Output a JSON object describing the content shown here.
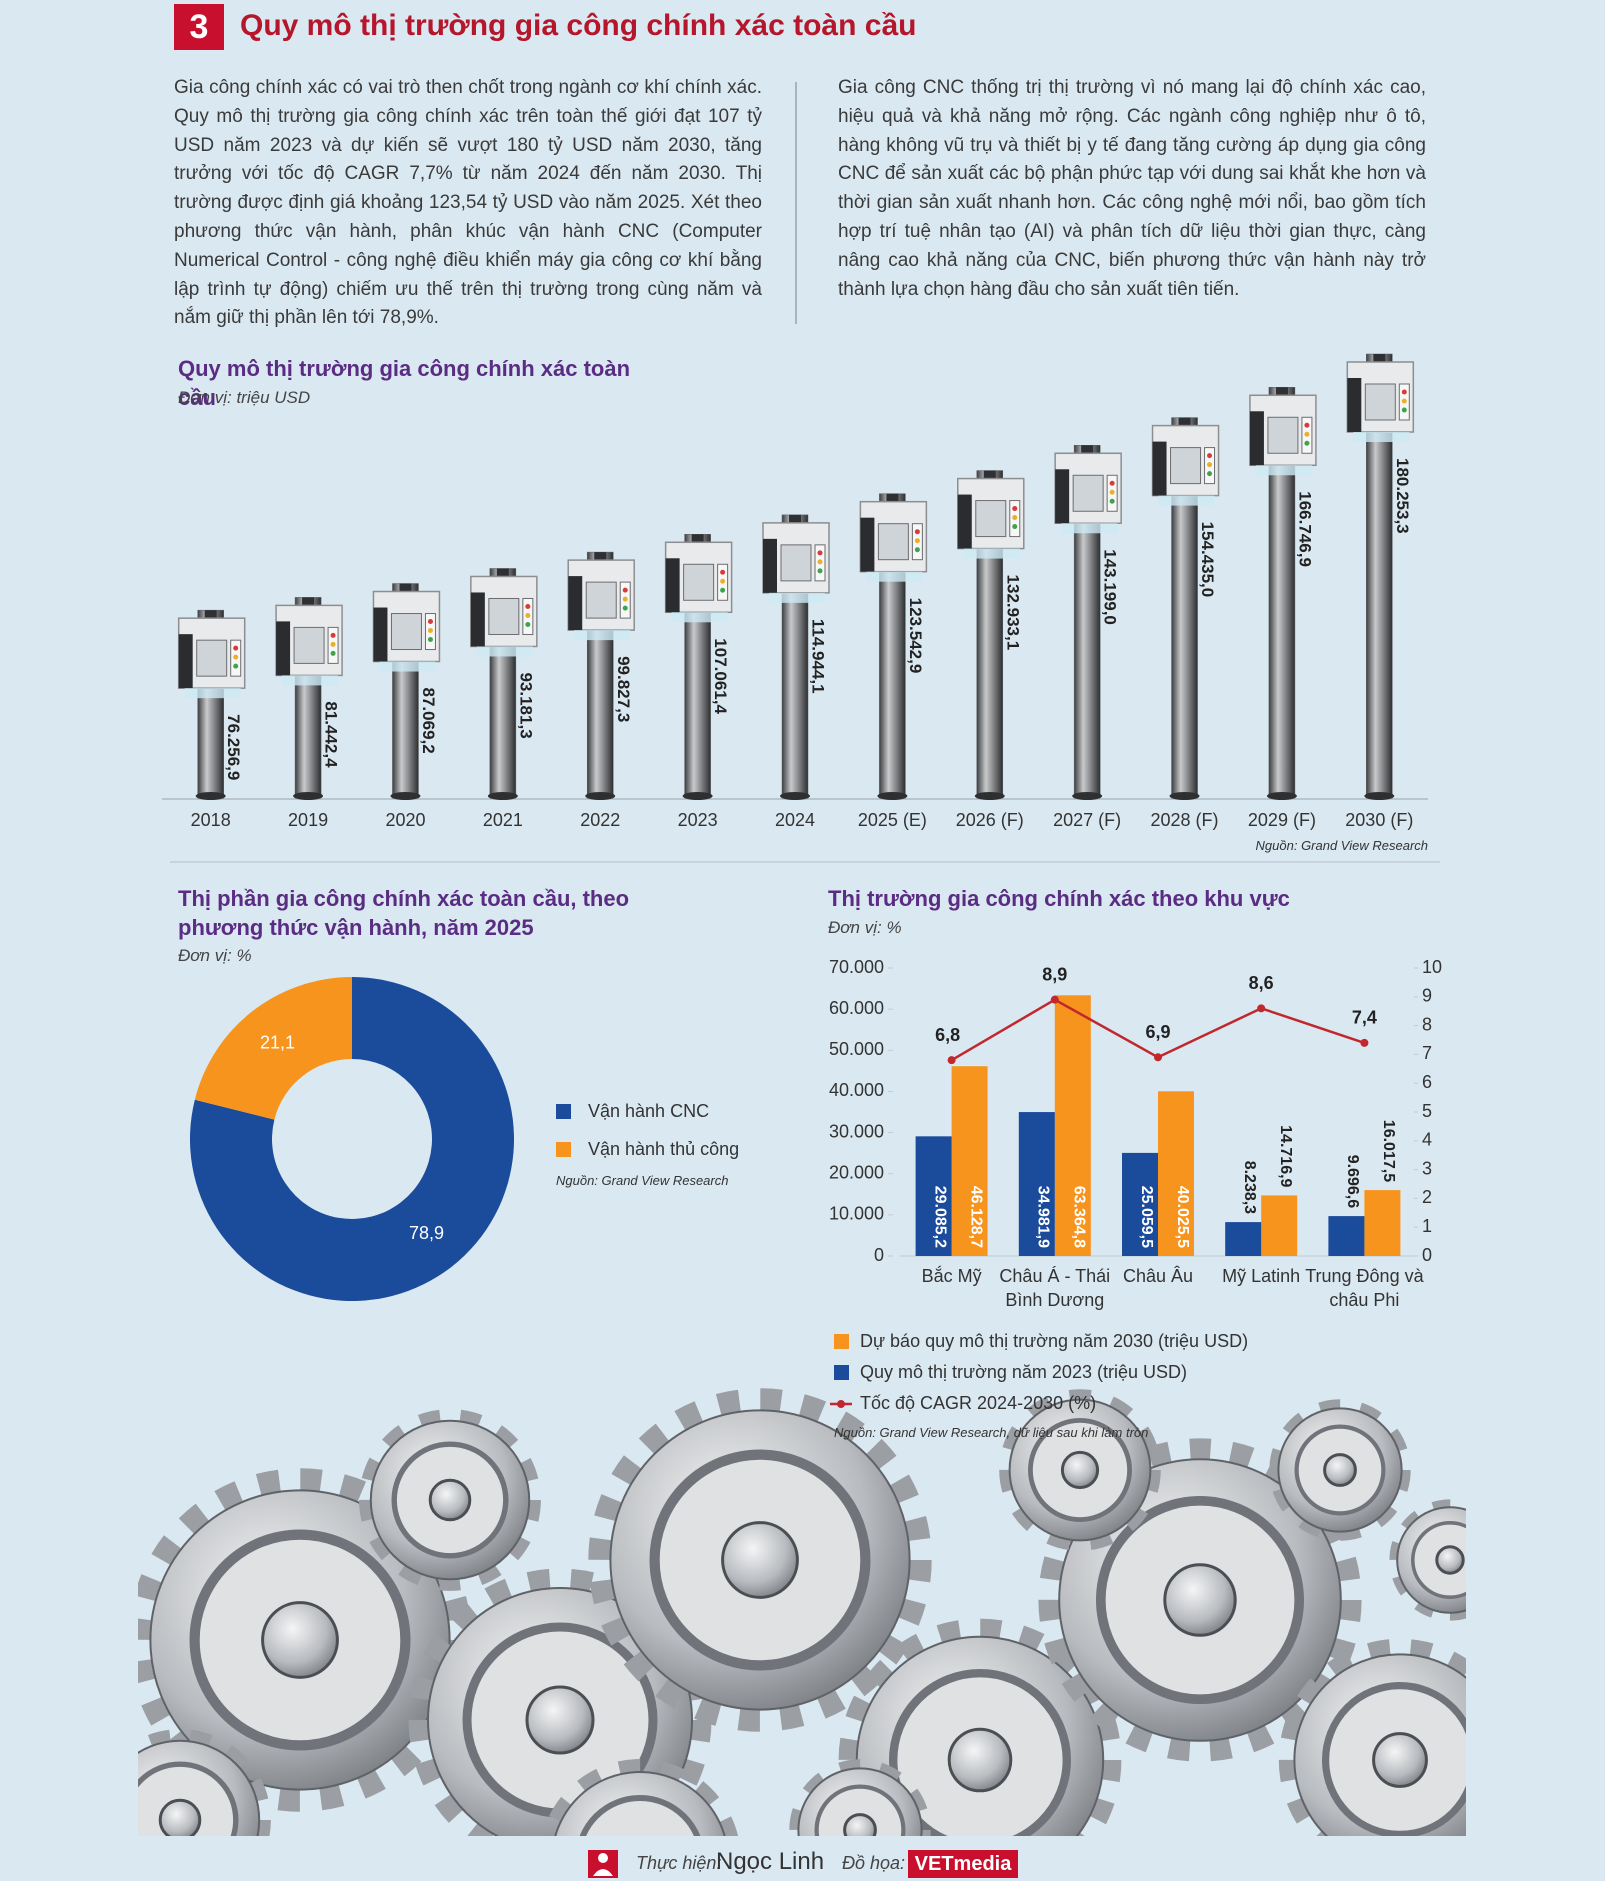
{
  "header": {
    "number": "3",
    "title": "Quy mô thị trường gia công chính xác toàn cầu"
  },
  "paragraphs": [
    "Gia công chính xác có vai trò then chốt trong ngành cơ khí chính xác. Quy mô thị trường gia công chính xác trên toàn thế giới đạt 107 tỷ USD năm 2023 và dự kiến sẽ vượt 180 tỷ USD năm 2030, tăng trưởng với tốc độ CAGR 7,7% từ năm 2024 đến năm 2030. Thị trường được định giá khoảng 123,54 tỷ USD vào năm 2025. Xét theo phương thức vận hành, phân khúc vận hành CNC (Computer Numerical Control - công nghệ điều khiển máy gia công cơ khí bằng lập trình tự động) chiếm ưu thế trên thị trường trong cùng năm và nắm giữ thị phần lên tới 78,9%.",
    "Gia công CNC thống trị thị trường vì nó mang lại độ chính xác cao, hiệu quả và khả năng mở rộng. Các ngành công nghiệp như ô tô, hàng không vũ trụ và thiết bị y tế đang tăng cường áp dụng gia công CNC để sản xuất các bộ phận phức tạp với dung sai khắt khe hơn và thời gian sản xuất nhanh hơn. Các công nghệ mới nổi, bao gồm tích hợp trí tuệ nhân tạo (AI) và phân tích dữ liệu thời gian thực, càng nâng cao khả năng của CNC, biến phương thức vận hành này trở thành lựa chọn hàng đầu cho sản xuất tiên tiến."
  ],
  "chart_data": [
    {
      "type": "bar",
      "title": "Quy mô thị trường gia công chính xác toàn cầu",
      "subtitle": "Đơn vị: triệu USD",
      "source": "Nguồn: Grand View Research",
      "categories": [
        "2018",
        "2019",
        "2020",
        "2021",
        "2022",
        "2023",
        "2024",
        "2025 (E)",
        "2026 (F)",
        "2027 (F)",
        "2028 (F)",
        "2029 (F)",
        "2030 (F)"
      ],
      "values": [
        76256.9,
        81442.4,
        87069.2,
        93181.3,
        99827.3,
        107061.4,
        114944.1,
        123542.9,
        132933.1,
        143199.0,
        154435.0,
        166746.9,
        180253.3
      ],
      "value_labels": [
        "76.256,9",
        "81.442,4",
        "87.069,2",
        "93.181,3",
        "99.827,3",
        "107.061,4",
        "114.944,1",
        "123.542,9",
        "132.933,1",
        "143.199,0",
        "154.435,0",
        "166.746,9",
        "180.253,3"
      ],
      "color": "#5d5e61"
    },
    {
      "type": "pie",
      "title": "Thị phần gia công chính xác toàn cầu, theo phương thức vận hành, năm 2025",
      "subtitle": "Đơn vị: %",
      "source": "Nguồn: Grand View Research",
      "categories": [
        "Vận hành CNC",
        "Vận hành thủ công"
      ],
      "values": [
        78.9,
        21.1
      ],
      "value_labels": [
        "78,9",
        "21,1"
      ],
      "colors": [
        "#1b4b9b",
        "#f7941d"
      ]
    },
    {
      "type": "bar",
      "title": "Thị trường gia công chính xác theo khu vực",
      "subtitle": "Đơn vị: %",
      "source": "Nguồn: Grand View Research, dữ liệu sau khi làm tròn",
      "categories": [
        "Bắc Mỹ",
        "Châu Á - Thái Bình Dương",
        "Châu Âu",
        "Mỹ Latinh",
        "Trung Đông và châu Phi"
      ],
      "series": [
        {
          "name": "Dự báo quy mô thị trường năm 2030 (triệu USD)",
          "color": "#f7941d",
          "values": [
            46128.7,
            63364.8,
            40025.5,
            14716.9,
            16017.5
          ],
          "value_labels": [
            "46.128,7",
            "63.364,8",
            "40.025,5",
            "14.716,9",
            "16.017,5"
          ]
        },
        {
          "name": "Quy mô thị trường năm 2023 (triệu USD)",
          "color": "#1b4b9b",
          "values": [
            29085.2,
            34981.9,
            25059.5,
            8238.3,
            9696.6
          ],
          "value_labels": [
            "29.085,2",
            "34.981,9",
            "25.059,5",
            "8.238,3",
            "9.696,6"
          ]
        },
        {
          "name": "Tốc độ CAGR 2024-2030 (%)",
          "color": "#c1272d",
          "type": "line",
          "axis": "y2",
          "values": [
            6.8,
            8.9,
            6.9,
            8.6,
            7.4
          ],
          "value_labels": [
            "6,8",
            "8,9",
            "6,9",
            "8,6",
            "7,4"
          ]
        }
      ],
      "ylim": [
        0,
        70000
      ],
      "yticks": [
        0,
        {
          "value": 10000,
          "label": "10.000"
        },
        {
          "value": 20000,
          "label": "20.000"
        },
        {
          "value": 30000,
          "label": "30.000"
        },
        {
          "value": 40000,
          "label": "40.000"
        },
        {
          "value": 50000,
          "label": "50.000"
        },
        {
          "value": 60000,
          "label": "60.000"
        },
        {
          "value": 70000,
          "label": "70.000"
        }
      ],
      "y2lim": [
        0,
        10
      ],
      "y2ticks": [
        0,
        1,
        2,
        3,
        4,
        5,
        6,
        7,
        8,
        9,
        10
      ]
    }
  ],
  "footer": {
    "made_by_label": "Thực hiện:",
    "made_by": "Ngọc Linh",
    "graphics_label": "Đồ họa:",
    "graphics": "VETmedia"
  }
}
